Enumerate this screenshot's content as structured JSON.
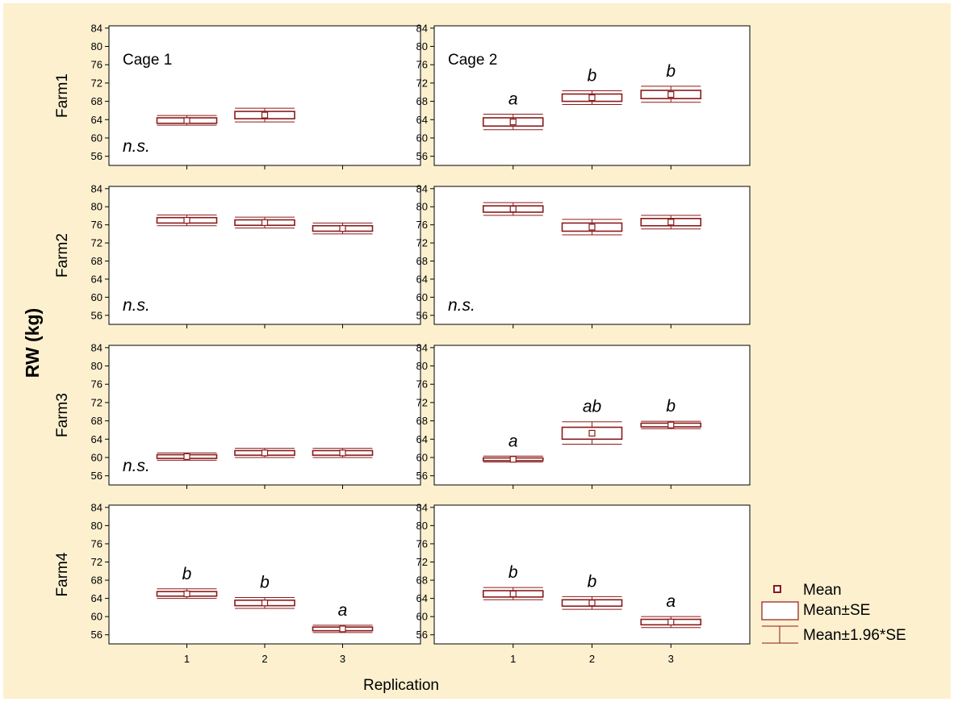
{
  "colors": {
    "background": "#fcf0cf",
    "plot_face": "#ffffff",
    "marker": "#8b1a1a",
    "frame": "#000000"
  },
  "chart_data": {
    "type": "box",
    "ylabel": "RW (kg)",
    "xlabel": "Replication",
    "y_ticks": [
      56,
      60,
      64,
      68,
      72,
      76,
      80,
      84
    ],
    "ylim": [
      54,
      84.5
    ],
    "x_ticks": [
      1,
      2,
      3
    ],
    "xlim": [
      0,
      4
    ],
    "row_labels": [
      "Farm1",
      "Farm2",
      "Farm3",
      "Farm4"
    ],
    "column_labels": [
      "Cage 1",
      "Cage 2"
    ],
    "legend": {
      "position": "right",
      "entries": [
        "Mean",
        "Mean±SE",
        "Mean±1.96*SE"
      ]
    },
    "panels": [
      {
        "farm": "Farm1",
        "cage": "Cage 1",
        "cage_label": "Cage 1",
        "note": "n.s.",
        "points": [
          {
            "x": 1,
            "mean": 63.8,
            "se": 0.6,
            "ci": [
              62.8,
              64.9
            ],
            "letter": ""
          },
          {
            "x": 2,
            "mean": 65.0,
            "se": 0.8,
            "ci": [
              63.5,
              66.5
            ],
            "letter": ""
          }
        ]
      },
      {
        "farm": "Farm1",
        "cage": "Cage 2",
        "cage_label": "Cage 2",
        "note": "",
        "points": [
          {
            "x": 1,
            "mean": 63.5,
            "se": 0.9,
            "ci": [
              61.8,
              65.2
            ],
            "letter": "a"
          },
          {
            "x": 2,
            "mean": 68.8,
            "se": 0.8,
            "ci": [
              67.3,
              70.3
            ],
            "letter": "b"
          },
          {
            "x": 3,
            "mean": 69.5,
            "se": 0.9,
            "ci": [
              67.8,
              71.3
            ],
            "letter": "b"
          }
        ]
      },
      {
        "farm": "Farm2",
        "cage": "Cage 1",
        "cage_label": "",
        "note": "n.s.",
        "points": [
          {
            "x": 1,
            "mean": 77.0,
            "se": 0.6,
            "ci": [
              75.8,
              78.2
            ],
            "letter": ""
          },
          {
            "x": 2,
            "mean": 76.5,
            "se": 0.6,
            "ci": [
              75.3,
              77.7
            ],
            "letter": ""
          },
          {
            "x": 3,
            "mean": 75.2,
            "se": 0.6,
            "ci": [
              74.0,
              76.4
            ],
            "letter": ""
          }
        ]
      },
      {
        "farm": "Farm2",
        "cage": "Cage 2",
        "cage_label": "",
        "note": "n.s.",
        "points": [
          {
            "x": 1,
            "mean": 79.5,
            "se": 0.7,
            "ci": [
              78.1,
              80.9
            ],
            "letter": ""
          },
          {
            "x": 2,
            "mean": 75.5,
            "se": 0.9,
            "ci": [
              73.8,
              77.2
            ],
            "letter": ""
          },
          {
            "x": 3,
            "mean": 76.6,
            "se": 0.8,
            "ci": [
              75.1,
              78.1
            ],
            "letter": ""
          }
        ]
      },
      {
        "farm": "Farm3",
        "cage": "Cage 1",
        "cage_label": "",
        "note": "n.s.",
        "points": [
          {
            "x": 1,
            "mean": 60.2,
            "se": 0.4,
            "ci": [
              59.4,
              61.0
            ],
            "letter": ""
          },
          {
            "x": 2,
            "mean": 61.0,
            "se": 0.5,
            "ci": [
              60.0,
              62.0
            ],
            "letter": ""
          },
          {
            "x": 3,
            "mean": 61.0,
            "se": 0.5,
            "ci": [
              60.0,
              62.0
            ],
            "letter": ""
          }
        ]
      },
      {
        "farm": "Farm3",
        "cage": "Cage 2",
        "cage_label": "",
        "note": "",
        "points": [
          {
            "x": 1,
            "mean": 59.6,
            "se": 0.3,
            "ci": [
              59.0,
              60.3
            ],
            "letter": "a"
          },
          {
            "x": 2,
            "mean": 65.3,
            "se": 1.3,
            "ci": [
              62.9,
              67.8
            ],
            "letter": "ab"
          },
          {
            "x": 3,
            "mean": 67.1,
            "se": 0.4,
            "ci": [
              66.3,
              67.9
            ],
            "letter": "b"
          }
        ]
      },
      {
        "farm": "Farm4",
        "cage": "Cage 1",
        "cage_label": "",
        "note": "",
        "points": [
          {
            "x": 1,
            "mean": 65.0,
            "se": 0.5,
            "ci": [
              64.0,
              66.1
            ],
            "letter": "b"
          },
          {
            "x": 2,
            "mean": 63.0,
            "se": 0.6,
            "ci": [
              61.8,
              64.2
            ],
            "letter": "b"
          },
          {
            "x": 3,
            "mean": 57.3,
            "se": 0.4,
            "ci": [
              56.5,
              58.1
            ],
            "letter": "a"
          }
        ]
      },
      {
        "farm": "Farm4",
        "cage": "Cage 2",
        "cage_label": "",
        "note": "",
        "points": [
          {
            "x": 1,
            "mean": 65.0,
            "se": 0.7,
            "ci": [
              63.7,
              66.4
            ],
            "letter": "b"
          },
          {
            "x": 2,
            "mean": 63.0,
            "se": 0.7,
            "ci": [
              61.6,
              64.4
            ],
            "letter": "b"
          },
          {
            "x": 3,
            "mean": 58.8,
            "se": 0.6,
            "ci": [
              57.6,
              60.0
            ],
            "letter": "a"
          }
        ]
      }
    ]
  }
}
